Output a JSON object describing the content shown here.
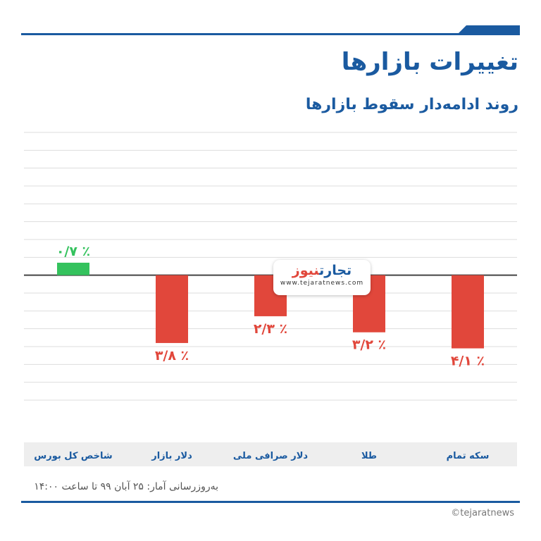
{
  "header": {
    "title": "تغییرات بازارها",
    "subtitle": "روند ادامه‌دار سقوط بازارها"
  },
  "logo": {
    "name_part1": "تجارت",
    "name_part2": "نیوز",
    "url": "www.tejaratnews.com"
  },
  "chart_data": {
    "type": "bar",
    "categories": [
      "شاخص کل بورس",
      "دلار بازار",
      "دلار صرافی ملی",
      "طلا",
      "سکه تمام"
    ],
    "values": [
      0.7,
      -3.8,
      -2.3,
      -3.2,
      -4.1
    ],
    "value_labels": [
      "۰/۷ ٪",
      "۳/۸ ٪",
      "۲/۳ ٪",
      "۳/۲ ٪",
      "۴/۱ ٪"
    ],
    "ylim": [
      -7,
      8
    ],
    "grid": true,
    "colors": {
      "positive": "#34c25d",
      "negative": "#e1473b",
      "baseline": "#444444",
      "grid": "#dddddd",
      "category_text": "#1a5aa0"
    }
  },
  "footer": {
    "note": "به‌روزرسانی آمار: ۲۵ آبان ۹۹ تا ساعت ۱۴:۰۰",
    "credit": "©tejaratnews"
  },
  "theme": {
    "brand": "#1a5aa0"
  }
}
